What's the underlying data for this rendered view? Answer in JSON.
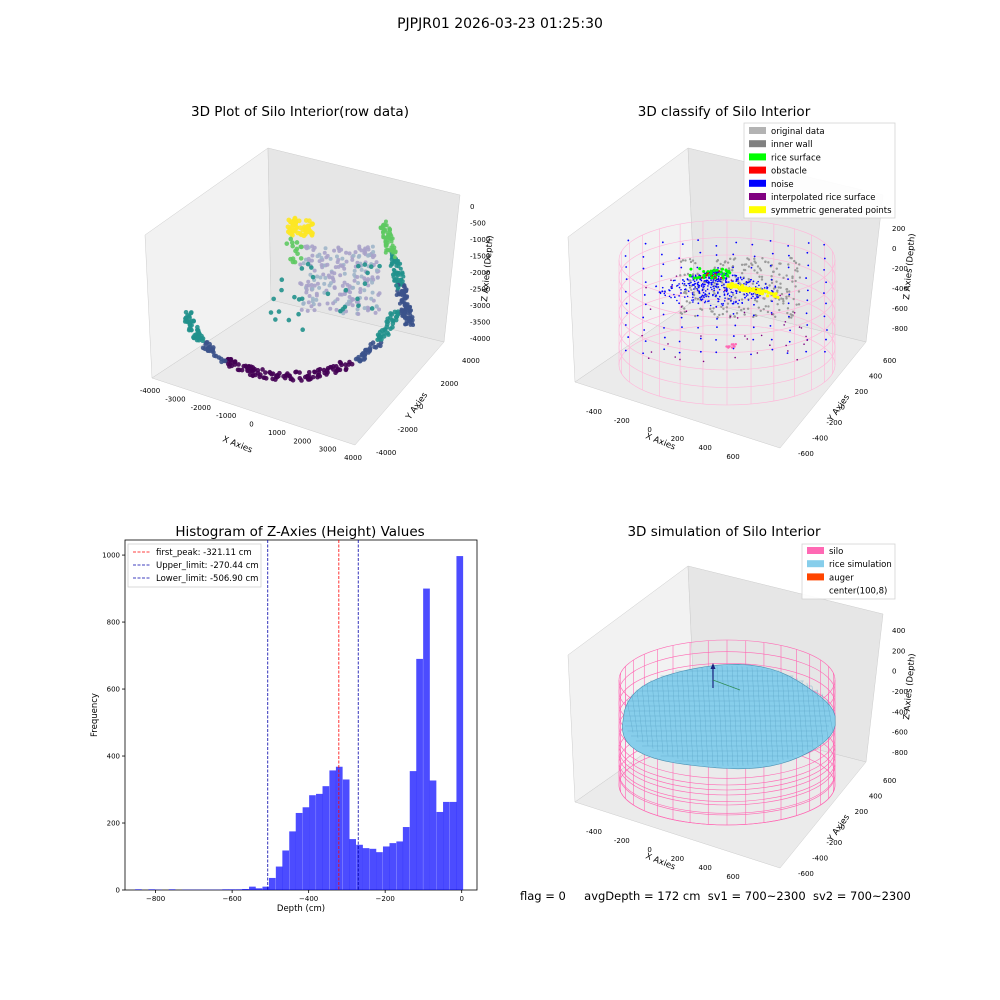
{
  "figure": {
    "suptitle": "PJPJR01 2026-03-23 01:25:30",
    "footer": {
      "flag": "flag = 0",
      "avg_depth": "avgDepth = 172 cm",
      "sv1": "sv1 = 700~2300",
      "sv2": "sv2 = 700~2300"
    }
  },
  "chart_data": [
    {
      "type": "scatter",
      "projection": "3d",
      "title": "3D Plot of Silo Interior(row data)",
      "xlabel": "X Axies",
      "ylabel": "Y Axies",
      "zlabel": "Z Axies (Depth)",
      "xticks": [
        "-4000",
        "-3000",
        "-2000",
        "-1000",
        "0",
        "1000",
        "2000",
        "3000",
        "4000"
      ],
      "yticks": [
        "-4000",
        "-2000",
        "0",
        "2000",
        "4000"
      ],
      "zticks": [
        "0",
        "-500",
        "-1000",
        "-1500",
        "-2000",
        "-2500",
        "-3000",
        "-3500",
        "-4000"
      ],
      "colormap": "viridis",
      "description_colors": [
        "#440154",
        "#3b528b",
        "#21918c",
        "#5ec962",
        "#fde725"
      ]
    },
    {
      "type": "scatter",
      "projection": "3d",
      "title": "3D classify of Silo Interior",
      "xlabel": "X Axies",
      "ylabel": "Y Axies",
      "zlabel": "Z Axies (Depth)",
      "xticks": [
        "-400",
        "-200",
        "0",
        "200",
        "400",
        "600"
      ],
      "yticks": [
        "-600",
        "-400",
        "-200",
        "0",
        "200",
        "400",
        "600"
      ],
      "zticks": [
        "200",
        "0",
        "-200",
        "-400",
        "-600",
        "-800"
      ],
      "legend_position": "upper right",
      "legend": [
        {
          "label": "original data",
          "color": "#b3b3b3"
        },
        {
          "label": "inner wall",
          "color": "#808080"
        },
        {
          "label": "rice surface",
          "color": "#00ff00"
        },
        {
          "label": "obstacle",
          "color": "#ff0000"
        },
        {
          "label": "noise",
          "color": "#0000ff"
        },
        {
          "label": "interpolated rice surface",
          "color": "#800080"
        },
        {
          "label": "symmetric generated points",
          "color": "#ffff00"
        }
      ]
    },
    {
      "type": "bar",
      "title": "Histogram of Z-Axies (Height) Values",
      "xlabel": "Depth (cm)",
      "ylabel": "Frequency",
      "xlim": [
        -880,
        40
      ],
      "ylim": [
        0,
        1045
      ],
      "xticks": [
        -800,
        -600,
        -400,
        -200,
        0
      ],
      "xtick_labels": [
        "−800",
        "−600",
        "−400",
        "−200",
        "0"
      ],
      "yticks": [
        0,
        200,
        400,
        600,
        800,
        1000
      ],
      "bar_color": "#0000ff",
      "bin_width": 17.5,
      "bins": [
        [
          -845,
          2
        ],
        [
          -827,
          0
        ],
        [
          -810,
          2
        ],
        [
          -792,
          1
        ],
        [
          -775,
          0
        ],
        [
          -757,
          2
        ],
        [
          -740,
          0
        ],
        [
          -722,
          1
        ],
        [
          -705,
          1
        ],
        [
          -687,
          1
        ],
        [
          -670,
          1
        ],
        [
          -652,
          1
        ],
        [
          -635,
          1
        ],
        [
          -617,
          2
        ],
        [
          -600,
          2
        ],
        [
          -582,
          2
        ],
        [
          -565,
          3
        ],
        [
          -547,
          10
        ],
        [
          -530,
          5
        ],
        [
          -512,
          10
        ],
        [
          -495,
          36
        ],
        [
          -477,
          70
        ],
        [
          -460,
          118
        ],
        [
          -442,
          175
        ],
        [
          -425,
          230
        ],
        [
          -407,
          247
        ],
        [
          -390,
          283
        ],
        [
          -372,
          287
        ],
        [
          -355,
          310
        ],
        [
          -337,
          357
        ],
        [
          -320,
          368
        ],
        [
          -302,
          330
        ],
        [
          -285,
          152
        ],
        [
          -267,
          135
        ],
        [
          -250,
          125
        ],
        [
          -232,
          123
        ],
        [
          -215,
          113
        ],
        [
          -197,
          130
        ],
        [
          -180,
          140
        ],
        [
          -162,
          145
        ],
        [
          -145,
          188
        ],
        [
          -127,
          355
        ],
        [
          -110,
          690
        ],
        [
          -92,
          900
        ],
        [
          -75,
          327
        ],
        [
          -57,
          233
        ],
        [
          -40,
          263
        ],
        [
          -22,
          263
        ],
        [
          -5,
          997
        ]
      ],
      "vlines": [
        {
          "label": "first_peak: -321.11 cm",
          "x": -321.11,
          "color": "#ff0000"
        },
        {
          "label": "Upper_limit: -270.44 cm",
          "x": -270.44,
          "color": "#0000aa"
        },
        {
          "label": "Lower_limit: -506.90 cm",
          "x": -506.9,
          "color": "#0000aa"
        }
      ],
      "legend_position": "upper left"
    },
    {
      "type": "surface",
      "projection": "3d",
      "title": "3D simulation of Silo Interior",
      "xlabel": "X Axies",
      "ylabel": "Y Axies",
      "zlabel": "Z Axies (Depth)",
      "xticks": [
        "-400",
        "-200",
        "0",
        "200",
        "400",
        "600"
      ],
      "yticks": [
        "-600",
        "-400",
        "-200",
        "0",
        "200",
        "400",
        "600"
      ],
      "zticks": [
        "400",
        "200",
        "0",
        "-200",
        "-400",
        "-600",
        "-800"
      ],
      "legend_position": "upper right",
      "legend": [
        {
          "label": "silo",
          "color": "#ff69b4"
        },
        {
          "label": "rice simulation",
          "color": "#87ceeb"
        },
        {
          "label": "auger",
          "color": "#ff4500"
        },
        {
          "label": "center(100,8)",
          "color": "#ffffff"
        }
      ]
    }
  ]
}
